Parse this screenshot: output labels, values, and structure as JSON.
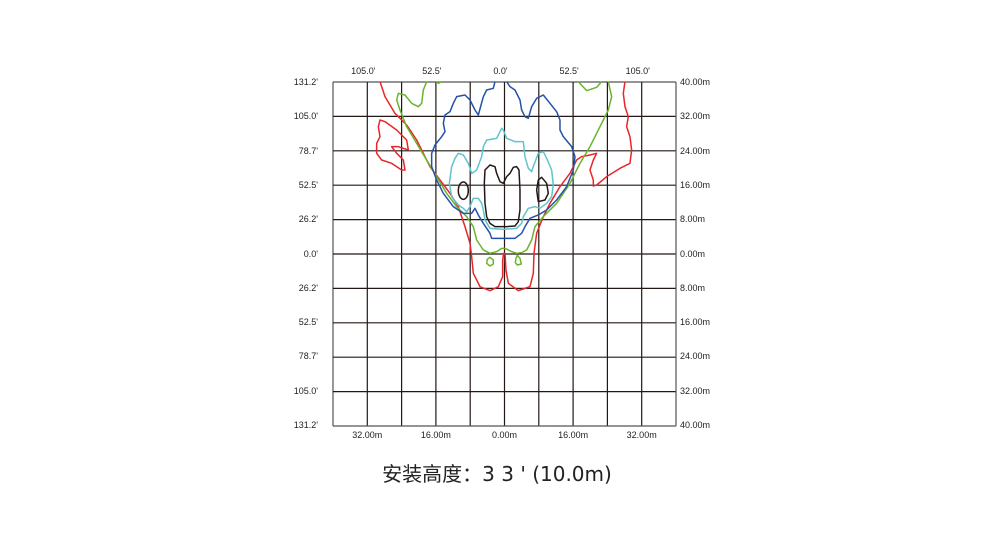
{
  "top_labels": [
    "105.0'",
    "52.5'",
    "0.0'",
    "52.5'",
    "105.0'"
  ],
  "bottom_labels": [
    "32.00m",
    "16.00m",
    "0.00m",
    "16.00m",
    "32.00m"
  ],
  "left_labels": [
    "131.2'",
    "105.0'",
    "78.7'",
    "52.5'",
    "26.2'",
    "0.0'",
    "26.2'",
    "52.5'",
    "78.7'",
    "105.0'",
    "131.2'"
  ],
  "right_labels": [
    "40.00m",
    "32.00m",
    "24.00m",
    "16.00m",
    "8.00m",
    "0.00m",
    "8.00m",
    "16.00m",
    "24.00m",
    "32.00m",
    "40.00m"
  ],
  "caption": "安装高度：3 3 ' (10.0m)",
  "contour_colors": {
    "red": "#e8262a",
    "green": "#6ab42d",
    "blue": "#2452a8",
    "cyan": "#5fc4cc",
    "black": "#231815"
  }
}
